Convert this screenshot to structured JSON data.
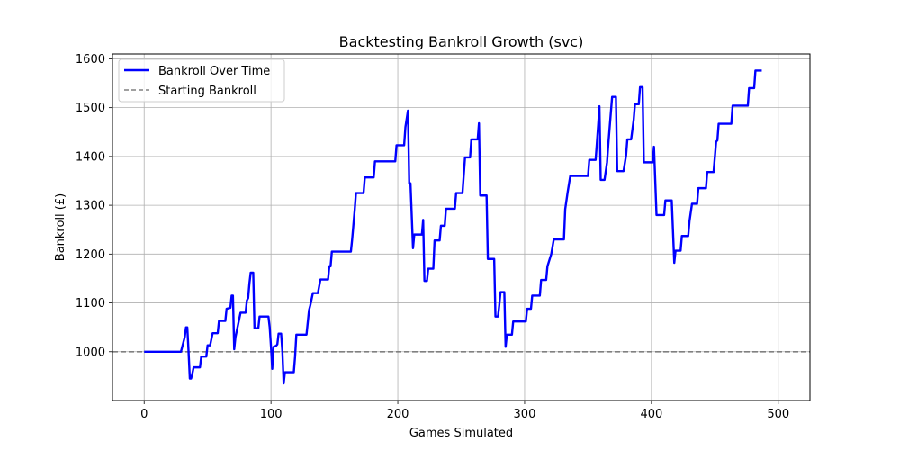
{
  "chart_data": {
    "type": "line",
    "title": "Backtesting Bankroll Growth (svc)",
    "xlabel": "Games Simulated",
    "ylabel": "Bankroll (£)",
    "xlim": [
      -25,
      525
    ],
    "ylim": [
      900,
      1610
    ],
    "x_ticks": [
      0,
      100,
      200,
      300,
      400,
      500
    ],
    "y_ticks": [
      1000,
      1100,
      1200,
      1300,
      1400,
      1500,
      1600
    ],
    "grid": true,
    "legend_position": "top-left",
    "series": [
      {
        "name": "Bankroll Over Time",
        "color": "#0000ff",
        "style": "solid",
        "points": [
          [
            0,
            1000
          ],
          [
            22,
            1000
          ],
          [
            23,
            1000
          ],
          [
            28,
            1000
          ],
          [
            29,
            1000
          ],
          [
            31,
            1020
          ],
          [
            32,
            1030
          ],
          [
            33,
            1050
          ],
          [
            34,
            1050
          ],
          [
            35,
            1000
          ],
          [
            36,
            945
          ],
          [
            37,
            945
          ],
          [
            38,
            955
          ],
          [
            39,
            968
          ],
          [
            44,
            968
          ],
          [
            45,
            990
          ],
          [
            49,
            990
          ],
          [
            50,
            1013
          ],
          [
            52,
            1013
          ],
          [
            54,
            1038
          ],
          [
            58,
            1038
          ],
          [
            59,
            1063
          ],
          [
            64,
            1063
          ],
          [
            65,
            1088
          ],
          [
            68,
            1090
          ],
          [
            69,
            1115
          ],
          [
            70,
            1115
          ],
          [
            71,
            1005
          ],
          [
            72,
            1030
          ],
          [
            74,
            1055
          ],
          [
            76,
            1080
          ],
          [
            80,
            1080
          ],
          [
            81,
            1105
          ],
          [
            82,
            1110
          ],
          [
            83,
            1140
          ],
          [
            84,
            1162
          ],
          [
            86,
            1162
          ],
          [
            87,
            1048
          ],
          [
            90,
            1048
          ],
          [
            91,
            1072
          ],
          [
            98,
            1072
          ],
          [
            99,
            1050
          ],
          [
            100,
            1010
          ],
          [
            101,
            965
          ],
          [
            102,
            1010
          ],
          [
            104,
            1012
          ],
          [
            105,
            1015
          ],
          [
            106,
            1037
          ],
          [
            108,
            1037
          ],
          [
            109,
            1000
          ],
          [
            110,
            935
          ],
          [
            111,
            958
          ],
          [
            118,
            958
          ],
          [
            119,
            990
          ],
          [
            120,
            1035
          ],
          [
            128,
            1035
          ],
          [
            130,
            1085
          ],
          [
            131,
            1095
          ],
          [
            133,
            1120
          ],
          [
            137,
            1120
          ],
          [
            139,
            1148
          ],
          [
            145,
            1148
          ],
          [
            146,
            1175
          ],
          [
            147,
            1175
          ],
          [
            148,
            1205
          ],
          [
            163,
            1205
          ],
          [
            164,
            1230
          ],
          [
            165,
            1260
          ],
          [
            166,
            1290
          ],
          [
            167,
            1325
          ],
          [
            173,
            1325
          ],
          [
            174,
            1357
          ],
          [
            181,
            1357
          ],
          [
            182,
            1390
          ],
          [
            198,
            1390
          ],
          [
            199,
            1423
          ],
          [
            205,
            1423
          ],
          [
            206,
            1460
          ],
          [
            208,
            1494
          ],
          [
            209,
            1345
          ],
          [
            210,
            1345
          ],
          [
            212,
            1212
          ],
          [
            213,
            1240
          ],
          [
            219,
            1240
          ],
          [
            220,
            1270
          ],
          [
            221,
            1145
          ],
          [
            223,
            1145
          ],
          [
            224,
            1170
          ],
          [
            228,
            1170
          ],
          [
            229,
            1228
          ],
          [
            233,
            1228
          ],
          [
            234,
            1258
          ],
          [
            237,
            1258
          ],
          [
            238,
            1293
          ],
          [
            245,
            1293
          ],
          [
            246,
            1325
          ],
          [
            251,
            1325
          ],
          [
            253,
            1398
          ],
          [
            257,
            1398
          ],
          [
            258,
            1435
          ],
          [
            263,
            1435
          ],
          [
            264,
            1468
          ],
          [
            265,
            1320
          ],
          [
            270,
            1320
          ],
          [
            271,
            1190
          ],
          [
            276,
            1190
          ],
          [
            277,
            1072
          ],
          [
            279,
            1072
          ],
          [
            280,
            1095
          ],
          [
            281,
            1122
          ],
          [
            284,
            1122
          ],
          [
            285,
            1010
          ],
          [
            286,
            1035
          ],
          [
            290,
            1035
          ],
          [
            291,
            1062
          ],
          [
            301,
            1062
          ],
          [
            302,
            1088
          ],
          [
            305,
            1088
          ],
          [
            306,
            1115
          ],
          [
            312,
            1115
          ],
          [
            313,
            1147
          ],
          [
            317,
            1147
          ],
          [
            318,
            1175
          ],
          [
            321,
            1200
          ],
          [
            323,
            1230
          ],
          [
            331,
            1230
          ],
          [
            332,
            1292
          ],
          [
            334,
            1328
          ],
          [
            336,
            1360
          ],
          [
            350,
            1360
          ],
          [
            351,
            1393
          ],
          [
            356,
            1393
          ],
          [
            357,
            1428
          ],
          [
            358,
            1464
          ],
          [
            359,
            1503
          ],
          [
            360,
            1352
          ],
          [
            363,
            1352
          ],
          [
            365,
            1388
          ],
          [
            366,
            1425
          ],
          [
            368,
            1490
          ],
          [
            369,
            1522
          ],
          [
            372,
            1522
          ],
          [
            373,
            1370
          ],
          [
            378,
            1370
          ],
          [
            380,
            1402
          ],
          [
            381,
            1435
          ],
          [
            384,
            1435
          ],
          [
            386,
            1475
          ],
          [
            387,
            1507
          ],
          [
            390,
            1507
          ],
          [
            391,
            1542
          ],
          [
            393,
            1542
          ],
          [
            394,
            1388
          ],
          [
            401,
            1388
          ],
          [
            402,
            1420
          ],
          [
            404,
            1280
          ],
          [
            410,
            1280
          ],
          [
            411,
            1310
          ],
          [
            416,
            1310
          ],
          [
            418,
            1182
          ],
          [
            419,
            1207
          ],
          [
            423,
            1207
          ],
          [
            424,
            1237
          ],
          [
            429,
            1237
          ],
          [
            430,
            1267
          ],
          [
            432,
            1303
          ],
          [
            436,
            1303
          ],
          [
            437,
            1335
          ],
          [
            443,
            1335
          ],
          [
            444,
            1368
          ],
          [
            449,
            1368
          ],
          [
            451,
            1430
          ],
          [
            452,
            1433
          ],
          [
            453,
            1467
          ],
          [
            463,
            1467
          ],
          [
            464,
            1504
          ],
          [
            476,
            1504
          ],
          [
            477,
            1540
          ],
          [
            481,
            1540
          ],
          [
            482,
            1576
          ],
          [
            487,
            1576
          ]
        ]
      },
      {
        "name": "Starting Bankroll",
        "color": "#808080",
        "style": "dashed",
        "value": 1000
      }
    ]
  }
}
